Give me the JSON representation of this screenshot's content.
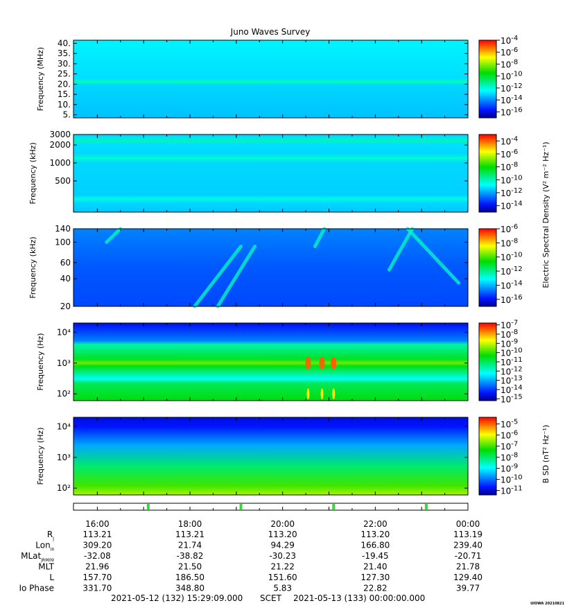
{
  "title": "Juno Waves Survey",
  "credit": "UIOWA 20210821",
  "chart_data": {
    "type": "heatmap",
    "time_axis": {
      "tick_labels": [
        "16:00",
        "18:00",
        "20:00",
        "22:00",
        "00:00"
      ],
      "start": "2021-05-12T15:29:09",
      "end": "2021-05-13T00:00:00"
    },
    "panels": [
      {
        "ylabel": "Frequency (MHz)",
        "yticks": [
          "40.",
          "35.",
          "30.",
          "25.",
          "20.",
          "15.",
          "10.",
          "5."
        ],
        "ytick_values": [
          40,
          35,
          30,
          25,
          20,
          15,
          10,
          5
        ],
        "ylim": [
          3.5,
          41.5
        ],
        "scale": "linear",
        "colorbar_ticks": [
          -4,
          -6,
          -8,
          -10,
          -12,
          -14,
          -16
        ],
        "colorbar_range": [
          -17,
          -4
        ],
        "background_level": -13.0,
        "features": "uniform cyan background with a green band near 21 MHz"
      },
      {
        "ylabel": "Frequency (kHz)",
        "yticks": [
          "3000",
          "2000",
          "1000",
          "500"
        ],
        "ytick_values": [
          3000,
          2000,
          1000,
          500
        ],
        "ylim": [
          150,
          3000
        ],
        "scale": "log",
        "colorbar_ticks": [
          -4,
          -6,
          -8,
          -10,
          -12,
          -14
        ],
        "colorbar_range": [
          -15,
          -3
        ],
        "background_level": -11.2,
        "features": "green bands near 2400 kHz, 1200 kHz and 250 kHz"
      },
      {
        "ylabel": "Frequency (kHz)",
        "yticks": [
          "140",
          "100",
          "60",
          "40",
          "20"
        ],
        "ytick_values": [
          140,
          100,
          60,
          40,
          20
        ],
        "ylim": [
          20,
          140
        ],
        "scale": "log",
        "colorbar_ticks": [
          -6,
          -8,
          -10,
          -12,
          -14,
          -16
        ],
        "colorbar_range": [
          -17,
          -6
        ],
        "background_level": -15.0,
        "features": "blue background with cyan drifting emission arcs"
      },
      {
        "ylabel": "Frequency (Hz)",
        "yticks": [
          "10⁴",
          "10³",
          "10²"
        ],
        "ytick_values": [
          10000,
          1000,
          100
        ],
        "ylim": [
          60,
          20000
        ],
        "scale": "log",
        "colorbar_ticks": [
          -7,
          -8,
          -9,
          -10,
          -11,
          -12,
          -13,
          -14,
          -15
        ],
        "colorbar_range": [
          -15.2,
          -6.8
        ],
        "background_level": -10.5,
        "features": "intense bursts near 1 kHz around 20:30"
      },
      {
        "ylabel": "Frequency (Hz)",
        "yticks": [
          "10⁴",
          "10³",
          "10²"
        ],
        "ytick_values": [
          10000,
          1000,
          100
        ],
        "ylim": [
          60,
          20000
        ],
        "scale": "log",
        "colorbar_ticks": [
          -5,
          -6,
          -7,
          -8,
          -9,
          -10,
          -11
        ],
        "colorbar_range": [
          -11.4,
          -4.4
        ],
        "background_level": -8.0,
        "features": "magnetic spectral density rising toward low frequencies"
      }
    ],
    "colorbar_labels": {
      "electric": "Electric Spectral Density (V² m⁻² Hz⁻¹)",
      "magnetic": "B SD (nT² Hz⁻¹)"
    },
    "ephemeris": {
      "rows": [
        {
          "label": "R",
          "sub": "J",
          "values": [
            "113.21",
            "113.21",
            "113.20",
            "113.20",
            "113.19"
          ]
        },
        {
          "label": "Lon",
          "sub": "III",
          "values": [
            "309.20",
            "21.74",
            "94.29",
            "166.80",
            "239.40"
          ]
        },
        {
          "label": "MLat",
          "sub": "JRM09",
          "values": [
            "-32.08",
            "-38.82",
            "-30.23",
            "-19.45",
            "-20.71"
          ]
        },
        {
          "label": "MLT",
          "sub": "",
          "values": [
            "21.96",
            "21.50",
            "21.22",
            "21.40",
            "21.78"
          ]
        },
        {
          "label": "L",
          "sub": "",
          "values": [
            "157.70",
            "186.50",
            "151.60",
            "127.30",
            "129.40"
          ]
        },
        {
          "label": "Io Phase",
          "sub": "",
          "values": [
            "331.70",
            "348.80",
            "5.83",
            "22.82",
            "39.77"
          ]
        }
      ]
    },
    "footer": {
      "start": "2021-05-12 (132) 15:29:09.000",
      "scet": "SCET",
      "end": "2021-05-13 (133) 00:00:00.000"
    }
  }
}
